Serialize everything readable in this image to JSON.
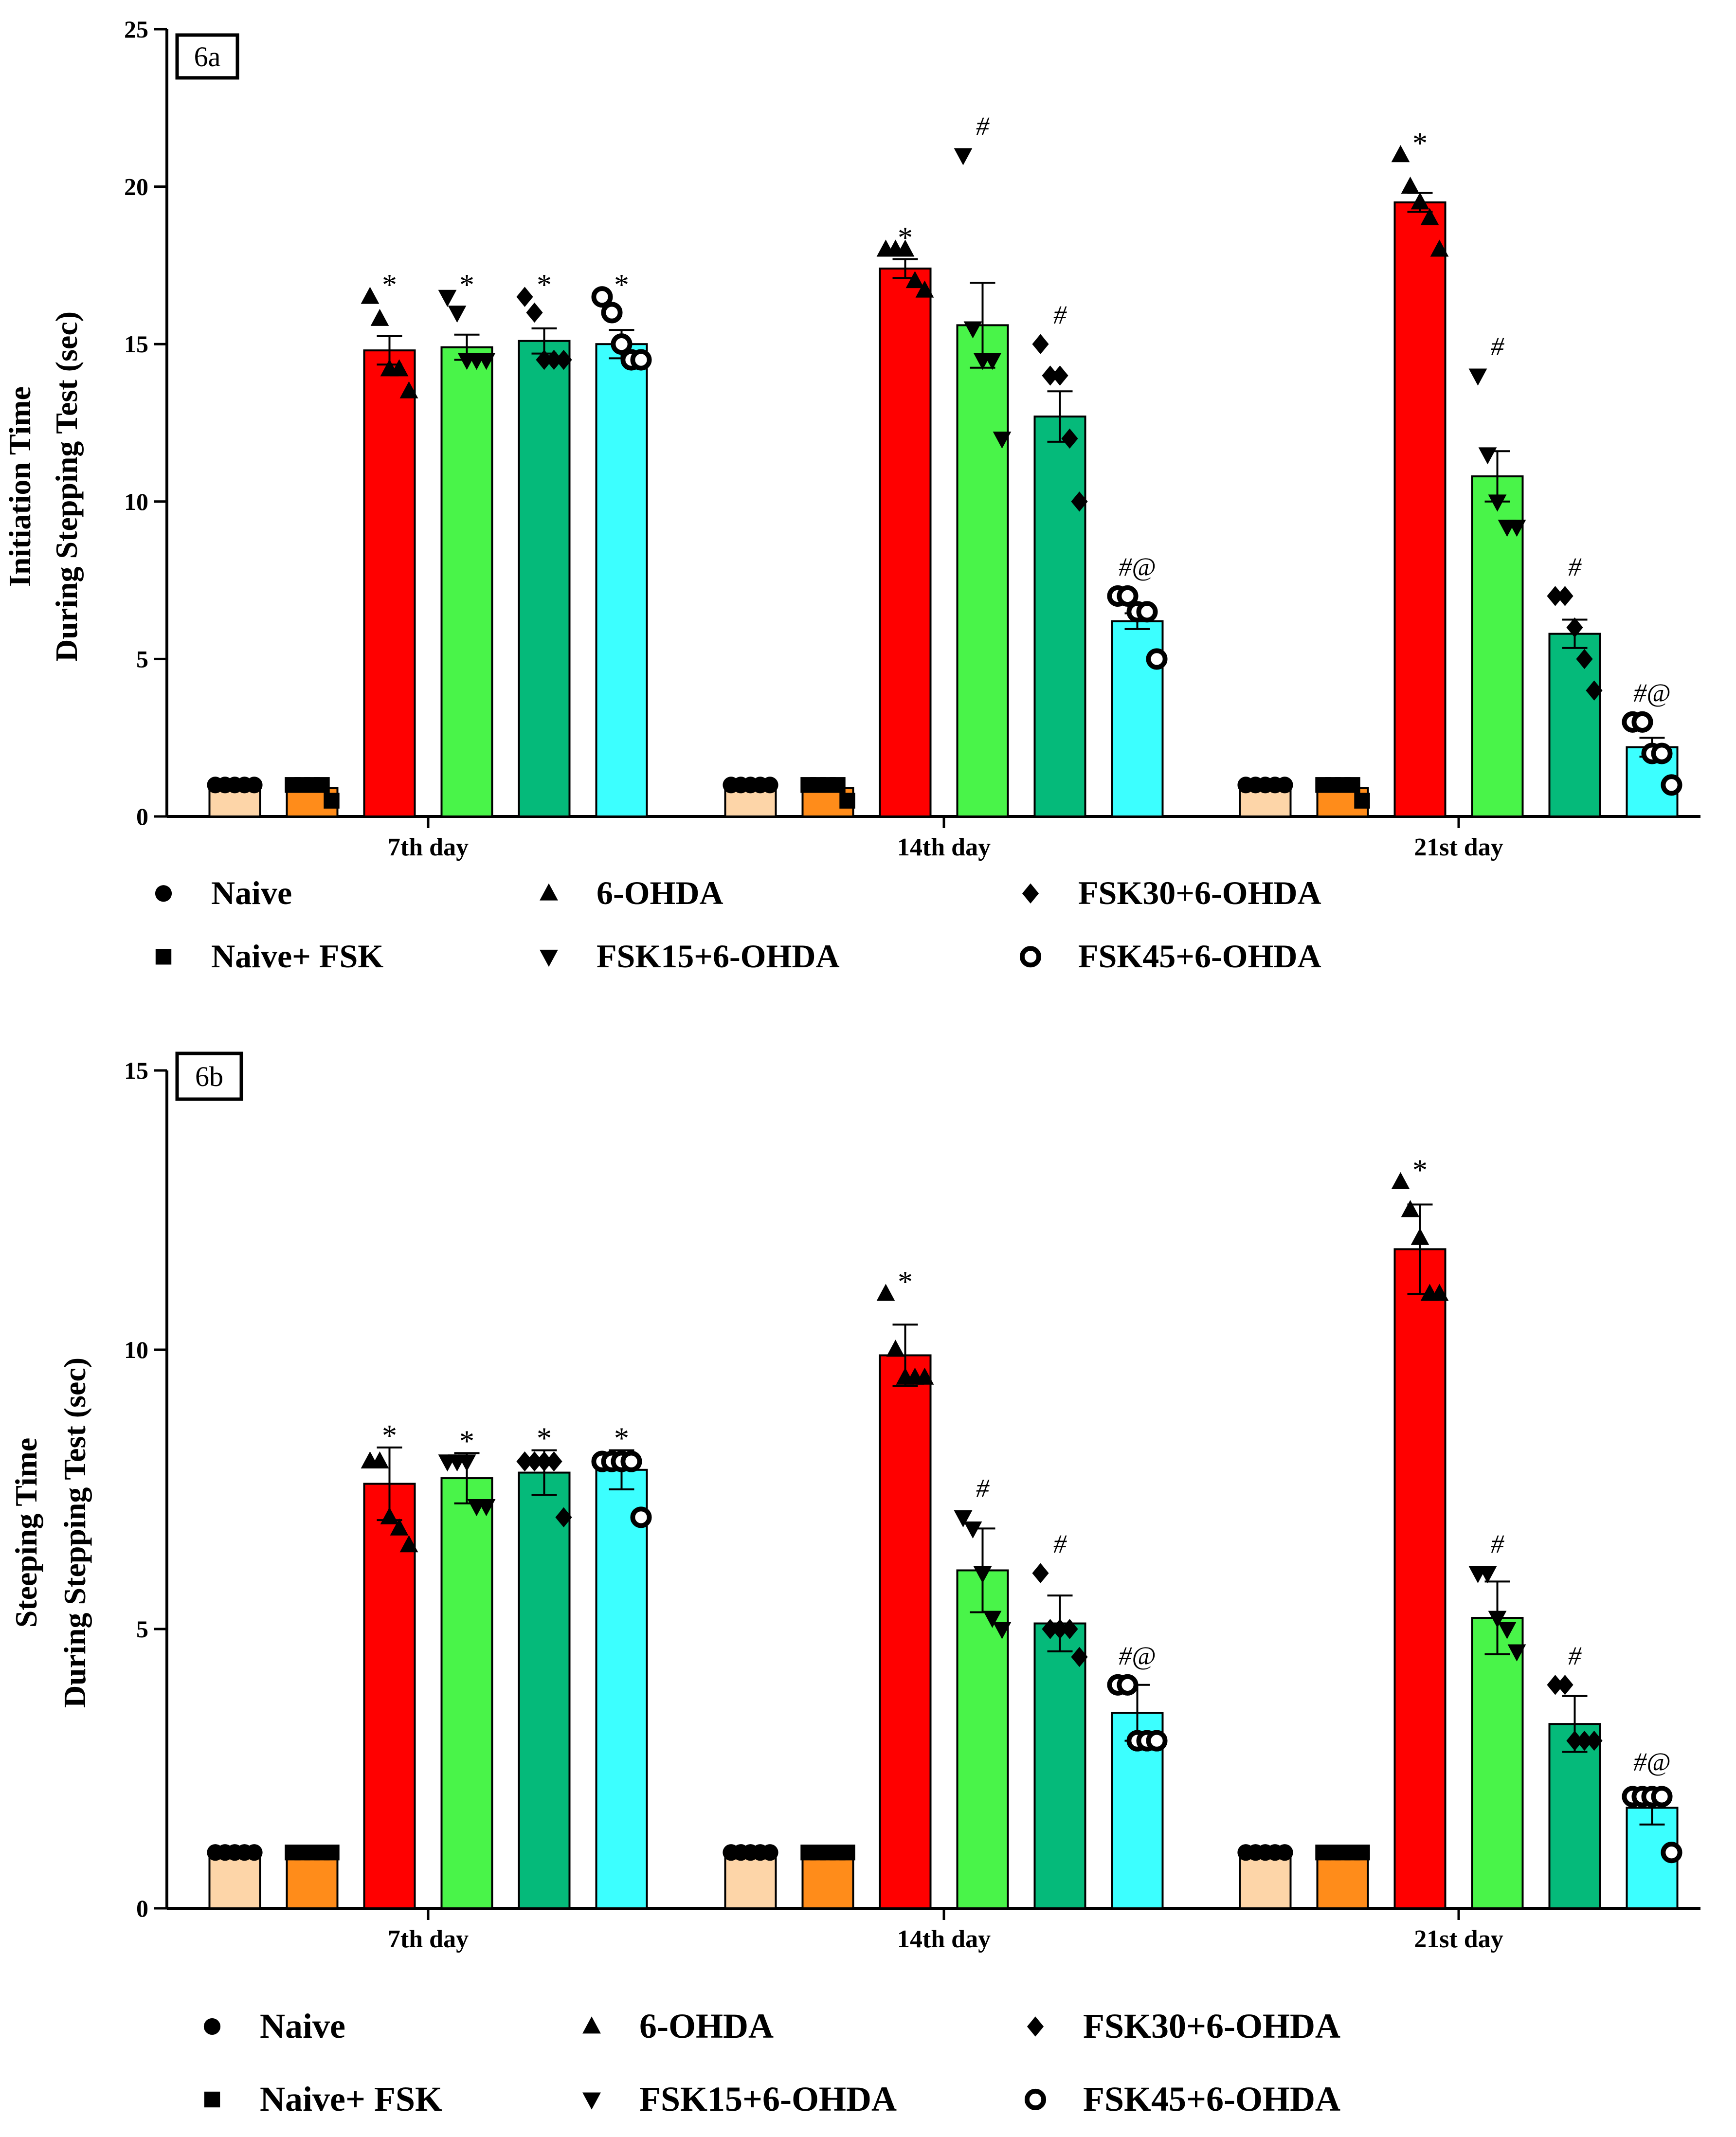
{
  "chart_data": [
    {
      "type": "bar",
      "panel_label": "6a",
      "ylabel_lines": [
        "Initiation Time",
        "During Stepping Test (sec)"
      ],
      "ylim": [
        0,
        25
      ],
      "yticks": [
        0,
        5,
        10,
        15,
        20,
        25
      ],
      "categories": [
        "7th day",
        "14th day",
        "21st day"
      ],
      "series": [
        {
          "name": "Naive",
          "color": "#FDD5A8",
          "marker": "circle",
          "values": [
            1,
            1,
            1
          ],
          "sem": [
            0,
            0,
            0
          ],
          "points": [
            [
              1,
              1,
              1,
              1,
              1
            ],
            [
              1,
              1,
              1,
              1,
              1
            ],
            [
              1,
              1,
              1,
              1,
              1
            ]
          ],
          "annotations": [
            "",
            "",
            ""
          ]
        },
        {
          "name": "Naive+ FSK",
          "color": "#FF8C1A",
          "marker": "square",
          "values": [
            0.9,
            0.9,
            0.9
          ],
          "sem": [
            0,
            0,
            0
          ],
          "points": [
            [
              1,
              1,
              1,
              1,
              0.5
            ],
            [
              1,
              1,
              1,
              1,
              0.5
            ],
            [
              1,
              1,
              1,
              1,
              0.5
            ]
          ],
          "annotations": [
            "",
            "",
            ""
          ]
        },
        {
          "name": "6-OHDA",
          "color": "#FF0000",
          "marker": "triangle-up",
          "values": [
            14.8,
            17.4,
            19.5
          ],
          "sem": [
            0.45,
            0.3,
            0.3
          ],
          "points": [
            [
              16.5,
              15.8,
              14.2,
              14.2,
              13.5
            ],
            [
              18,
              18,
              18,
              17,
              16.7
            ],
            [
              21,
              20,
              19.5,
              19,
              18
            ]
          ],
          "annotations": [
            "*",
            "*",
            "*"
          ]
        },
        {
          "name": "FSK15+6-OHDA",
          "color": "#49F449",
          "marker": "triangle-down",
          "values": [
            14.9,
            15.6,
            10.8
          ],
          "sem": [
            0.4,
            1.35,
            0.8
          ],
          "points": [
            [
              16.5,
              16,
              14.5,
              14.5,
              14.5
            ],
            [
              21,
              15.5,
              14.5,
              14.5,
              12
            ],
            [
              14,
              11.5,
              10,
              9.2,
              9.2
            ]
          ],
          "annotations": [
            "*",
            "#",
            "#"
          ]
        },
        {
          "name": "FSK30+6-OHDA",
          "color": "#05BA7A",
          "marker": "diamond",
          "values": [
            15.1,
            12.7,
            5.8
          ],
          "sem": [
            0.4,
            0.8,
            0.45
          ],
          "points": [
            [
              16.5,
              16,
              14.5,
              14.5,
              14.5
            ],
            [
              15,
              14,
              14,
              12,
              10
            ],
            [
              7,
              7,
              6,
              5,
              4
            ]
          ],
          "annotations": [
            "*",
            "#",
            "#"
          ]
        },
        {
          "name": "FSK45+6-OHDA",
          "color": "#3CFFFF",
          "marker": "ring",
          "values": [
            15.0,
            6.2,
            2.2
          ],
          "sem": [
            0.45,
            0.25,
            0.3
          ],
          "points": [
            [
              16.5,
              16,
              15,
              14.5,
              14.5
            ],
            [
              7,
              7,
              6.5,
              6.5,
              5
            ],
            [
              3,
              3,
              2,
              2,
              1
            ]
          ],
          "annotations": [
            "*",
            "#@",
            "#@"
          ]
        }
      ]
    },
    {
      "type": "bar",
      "panel_label": "6b",
      "ylabel_lines": [
        "Steeping Time",
        "During Stepping Test (sec)"
      ],
      "ylim": [
        0,
        15
      ],
      "yticks": [
        0,
        5,
        10,
        15
      ],
      "categories": [
        "7th day",
        "14th day",
        "21st day"
      ],
      "series": [
        {
          "name": "Naive",
          "color": "#FDD5A8",
          "marker": "circle",
          "values": [
            1,
            1,
            1
          ],
          "sem": [
            0,
            0,
            0
          ],
          "points": [
            [
              1,
              1,
              1,
              1,
              1
            ],
            [
              1,
              1,
              1,
              1,
              1
            ],
            [
              1,
              1,
              1,
              1,
              1
            ]
          ],
          "annotations": [
            "",
            "",
            ""
          ]
        },
        {
          "name": "Naive+ FSK",
          "color": "#FF8C1A",
          "marker": "square",
          "values": [
            1,
            1,
            1
          ],
          "sem": [
            0,
            0,
            0
          ],
          "points": [
            [
              1,
              1,
              1,
              1,
              1
            ],
            [
              1,
              1,
              1,
              1,
              1
            ],
            [
              1,
              1,
              1,
              1,
              1
            ]
          ],
          "annotations": [
            "",
            "",
            ""
          ]
        },
        {
          "name": "6-OHDA",
          "color": "#FF0000",
          "marker": "triangle-up",
          "values": [
            7.6,
            9.9,
            11.8
          ],
          "sem": [
            0.65,
            0.55,
            0.8
          ],
          "points": [
            [
              8,
              8,
              7,
              6.8,
              6.5
            ],
            [
              11,
              10,
              9.5,
              9.5,
              9.5
            ],
            [
              13,
              12.5,
              12,
              11,
              11
            ]
          ],
          "annotations": [
            "*",
            "*",
            "*"
          ]
        },
        {
          "name": "FSK15+6-OHDA",
          "color": "#49F449",
          "marker": "triangle-down",
          "values": [
            7.7,
            6.05,
            5.2
          ],
          "sem": [
            0.45,
            0.75,
            0.65
          ],
          "points": [
            [
              8,
              8,
              8,
              7.2,
              7.2
            ],
            [
              7,
              6.8,
              6,
              5.2,
              5
            ],
            [
              6,
              6,
              5.2,
              5,
              4.6
            ]
          ],
          "annotations": [
            "*",
            "#",
            "#"
          ]
        },
        {
          "name": "FSK30+6-OHDA",
          "color": "#05BA7A",
          "marker": "diamond",
          "values": [
            7.8,
            5.1,
            3.3
          ],
          "sem": [
            0.4,
            0.5,
            0.5
          ],
          "points": [
            [
              8,
              8,
              8,
              8,
              7
            ],
            [
              6,
              5,
              5,
              5,
              4.5
            ],
            [
              4,
              4,
              3,
              3,
              3
            ]
          ],
          "annotations": [
            "*",
            "#",
            "#"
          ]
        },
        {
          "name": "FSK45+6-OHDA",
          "color": "#3CFFFF",
          "marker": "ring",
          "values": [
            7.85,
            3.5,
            1.8
          ],
          "sem": [
            0.35,
            0.5,
            0.3
          ],
          "points": [
            [
              8,
              8,
              8,
              8,
              7
            ],
            [
              4,
              4,
              3,
              3,
              3
            ],
            [
              2,
              2,
              2,
              2,
              1
            ]
          ],
          "annotations": [
            "*",
            "#@",
            "#@"
          ]
        }
      ]
    }
  ],
  "legend": [
    "Naive",
    "Naive+ FSK",
    "6-OHDA",
    "FSK15+6-OHDA",
    "FSK30+6-OHDA",
    "FSK45+6-OHDA"
  ]
}
